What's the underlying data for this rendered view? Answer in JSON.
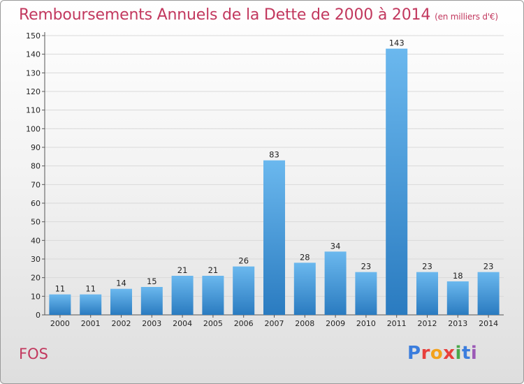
{
  "title": "Remboursements Annuels de la Dette de 2000 à 2014",
  "subtitle": "(en milliers d'€)",
  "place": "FOS",
  "logo": {
    "letters": [
      "P",
      "r",
      "o",
      "x",
      "i",
      "t",
      "i"
    ],
    "colors": [
      "#3b7ddd",
      "#e8403c",
      "#f3a21c",
      "#e8403c",
      "#4aa84a",
      "#3b7ddd",
      "#9b59b6"
    ]
  },
  "colors": {
    "title": "#c2385e",
    "bar_top": "#6bb8ee",
    "bar_bottom": "#2a7bc0",
    "grid": "#d9d9d9"
  },
  "chart_data": {
    "type": "bar",
    "categories": [
      "2000",
      "2001",
      "2002",
      "2003",
      "2004",
      "2005",
      "2006",
      "2007",
      "2008",
      "2009",
      "2010",
      "2011",
      "2012",
      "2013",
      "2014"
    ],
    "values": [
      11,
      11,
      14,
      15,
      21,
      21,
      26,
      83,
      28,
      34,
      23,
      143,
      23,
      18,
      23
    ],
    "title": "Remboursements Annuels de la Dette de 2000 à 2014",
    "subtitle": "(en milliers d'€)",
    "xlabel": "",
    "ylabel": "",
    "ylim": [
      0,
      150
    ],
    "yticks": [
      0,
      10,
      20,
      30,
      40,
      50,
      60,
      70,
      80,
      90,
      100,
      110,
      120,
      130,
      140,
      150
    ],
    "grid": true,
    "legend": "none"
  }
}
